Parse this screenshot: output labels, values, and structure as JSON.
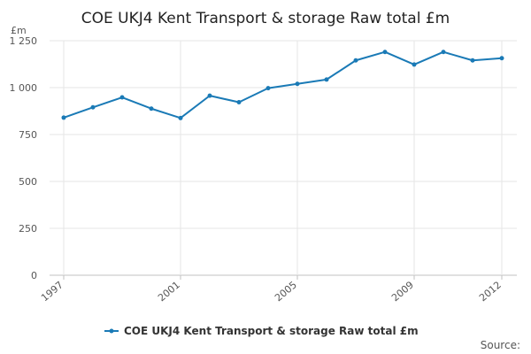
{
  "title": "COE UKJ4 Kent Transport & storage Raw total £m",
  "source_label": "Source:",
  "chart_data": {
    "type": "line",
    "title": "COE UKJ4 Kent Transport & storage Raw total £m",
    "ylabel": "£m",
    "xlabel": "",
    "ylim": [
      0,
      1250
    ],
    "yticks": [
      0,
      250,
      500,
      750,
      1000,
      1250
    ],
    "ytick_labels": [
      "0",
      "250",
      "500",
      "750",
      "1 000",
      "1 250"
    ],
    "xlim": [
      1997,
      2012
    ],
    "xticks": [
      1997,
      2001,
      2005,
      2009,
      2012
    ],
    "xtick_labels": [
      "1997",
      "2001",
      "2005",
      "2009",
      "2012"
    ],
    "grid": true,
    "legend": "bottom",
    "series": [
      {
        "name": "COE UKJ4 Kent Transport & storage Raw total £m",
        "color": "#1a7ab6",
        "x": [
          1997,
          1998,
          1999,
          2000,
          2001,
          2002,
          2003,
          2004,
          2005,
          2006,
          2007,
          2008,
          2009,
          2010,
          2011,
          2012
        ],
        "values": [
          840,
          895,
          948,
          888,
          838,
          957,
          922,
          997,
          1020,
          1043,
          1145,
          1190,
          1123,
          1190,
          1145,
          1157
        ]
      }
    ]
  }
}
